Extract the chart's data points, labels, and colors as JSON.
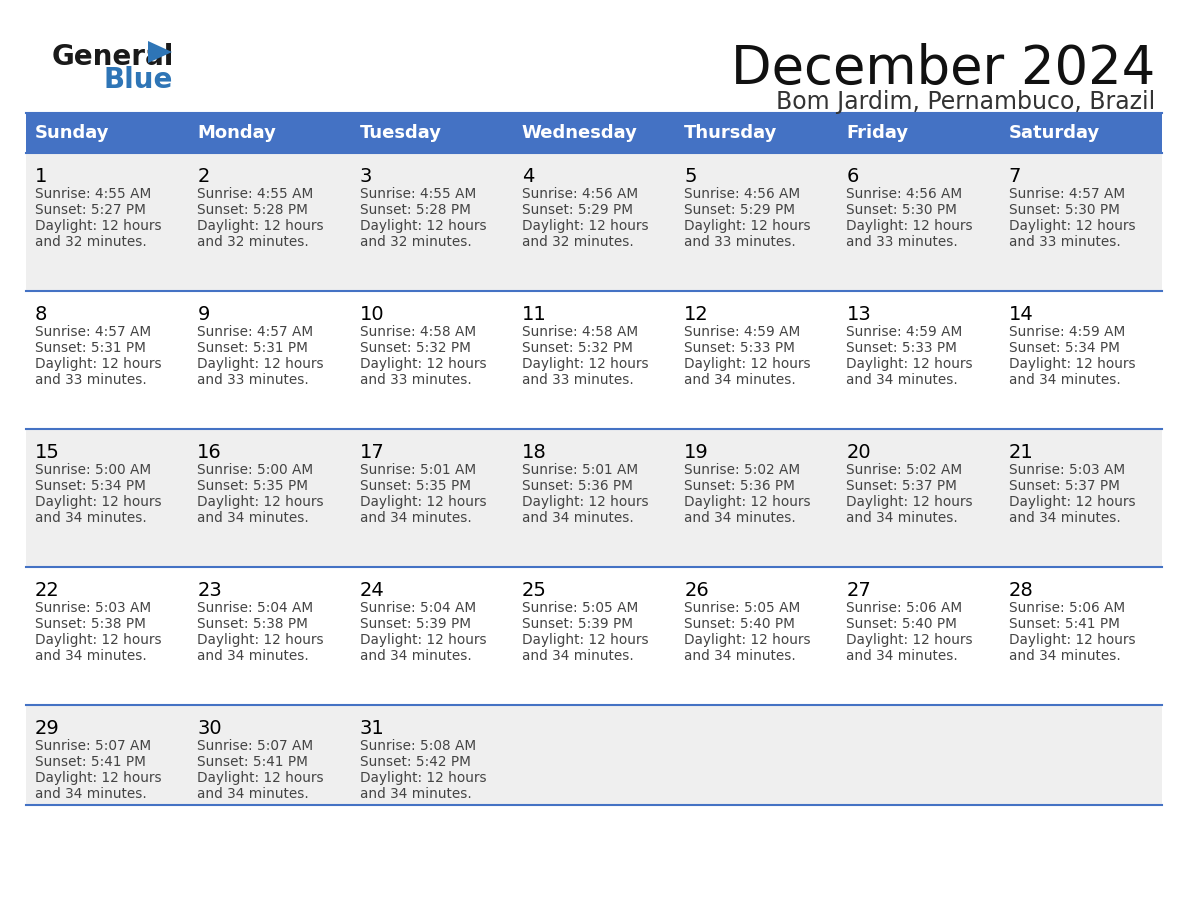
{
  "title": "December 2024",
  "subtitle": "Bom Jardim, Pernambuco, Brazil",
  "days_of_week": [
    "Sunday",
    "Monday",
    "Tuesday",
    "Wednesday",
    "Thursday",
    "Friday",
    "Saturday"
  ],
  "header_bg": "#4472C4",
  "header_text_color": "#FFFFFF",
  "row_bg_light": "#EFEFEF",
  "row_bg_white": "#FFFFFF",
  "cell_border_color": "#4472C4",
  "day_num_color": "#000000",
  "cell_text_color": "#444444",
  "logo_general_color": "#1a1a1a",
  "logo_blue_color": "#2E75B6",
  "weeks": [
    [
      {
        "day": 1,
        "sunrise": "4:55 AM",
        "sunset": "5:27 PM",
        "daylight": "12 hours and 32 minutes."
      },
      {
        "day": 2,
        "sunrise": "4:55 AM",
        "sunset": "5:28 PM",
        "daylight": "12 hours and 32 minutes."
      },
      {
        "day": 3,
        "sunrise": "4:55 AM",
        "sunset": "5:28 PM",
        "daylight": "12 hours and 32 minutes."
      },
      {
        "day": 4,
        "sunrise": "4:56 AM",
        "sunset": "5:29 PM",
        "daylight": "12 hours and 32 minutes."
      },
      {
        "day": 5,
        "sunrise": "4:56 AM",
        "sunset": "5:29 PM",
        "daylight": "12 hours and 33 minutes."
      },
      {
        "day": 6,
        "sunrise": "4:56 AM",
        "sunset": "5:30 PM",
        "daylight": "12 hours and 33 minutes."
      },
      {
        "day": 7,
        "sunrise": "4:57 AM",
        "sunset": "5:30 PM",
        "daylight": "12 hours and 33 minutes."
      }
    ],
    [
      {
        "day": 8,
        "sunrise": "4:57 AM",
        "sunset": "5:31 PM",
        "daylight": "12 hours and 33 minutes."
      },
      {
        "day": 9,
        "sunrise": "4:57 AM",
        "sunset": "5:31 PM",
        "daylight": "12 hours and 33 minutes."
      },
      {
        "day": 10,
        "sunrise": "4:58 AM",
        "sunset": "5:32 PM",
        "daylight": "12 hours and 33 minutes."
      },
      {
        "day": 11,
        "sunrise": "4:58 AM",
        "sunset": "5:32 PM",
        "daylight": "12 hours and 33 minutes."
      },
      {
        "day": 12,
        "sunrise": "4:59 AM",
        "sunset": "5:33 PM",
        "daylight": "12 hours and 34 minutes."
      },
      {
        "day": 13,
        "sunrise": "4:59 AM",
        "sunset": "5:33 PM",
        "daylight": "12 hours and 34 minutes."
      },
      {
        "day": 14,
        "sunrise": "4:59 AM",
        "sunset": "5:34 PM",
        "daylight": "12 hours and 34 minutes."
      }
    ],
    [
      {
        "day": 15,
        "sunrise": "5:00 AM",
        "sunset": "5:34 PM",
        "daylight": "12 hours and 34 minutes."
      },
      {
        "day": 16,
        "sunrise": "5:00 AM",
        "sunset": "5:35 PM",
        "daylight": "12 hours and 34 minutes."
      },
      {
        "day": 17,
        "sunrise": "5:01 AM",
        "sunset": "5:35 PM",
        "daylight": "12 hours and 34 minutes."
      },
      {
        "day": 18,
        "sunrise": "5:01 AM",
        "sunset": "5:36 PM",
        "daylight": "12 hours and 34 minutes."
      },
      {
        "day": 19,
        "sunrise": "5:02 AM",
        "sunset": "5:36 PM",
        "daylight": "12 hours and 34 minutes."
      },
      {
        "day": 20,
        "sunrise": "5:02 AM",
        "sunset": "5:37 PM",
        "daylight": "12 hours and 34 minutes."
      },
      {
        "day": 21,
        "sunrise": "5:03 AM",
        "sunset": "5:37 PM",
        "daylight": "12 hours and 34 minutes."
      }
    ],
    [
      {
        "day": 22,
        "sunrise": "5:03 AM",
        "sunset": "5:38 PM",
        "daylight": "12 hours and 34 minutes."
      },
      {
        "day": 23,
        "sunrise": "5:04 AM",
        "sunset": "5:38 PM",
        "daylight": "12 hours and 34 minutes."
      },
      {
        "day": 24,
        "sunrise": "5:04 AM",
        "sunset": "5:39 PM",
        "daylight": "12 hours and 34 minutes."
      },
      {
        "day": 25,
        "sunrise": "5:05 AM",
        "sunset": "5:39 PM",
        "daylight": "12 hours and 34 minutes."
      },
      {
        "day": 26,
        "sunrise": "5:05 AM",
        "sunset": "5:40 PM",
        "daylight": "12 hours and 34 minutes."
      },
      {
        "day": 27,
        "sunrise": "5:06 AM",
        "sunset": "5:40 PM",
        "daylight": "12 hours and 34 minutes."
      },
      {
        "day": 28,
        "sunrise": "5:06 AM",
        "sunset": "5:41 PM",
        "daylight": "12 hours and 34 minutes."
      }
    ],
    [
      {
        "day": 29,
        "sunrise": "5:07 AM",
        "sunset": "5:41 PM",
        "daylight": "12 hours and 34 minutes."
      },
      {
        "day": 30,
        "sunrise": "5:07 AM",
        "sunset": "5:41 PM",
        "daylight": "12 hours and 34 minutes."
      },
      {
        "day": 31,
        "sunrise": "5:08 AM",
        "sunset": "5:42 PM",
        "daylight": "12 hours and 34 minutes."
      },
      null,
      null,
      null,
      null
    ]
  ]
}
